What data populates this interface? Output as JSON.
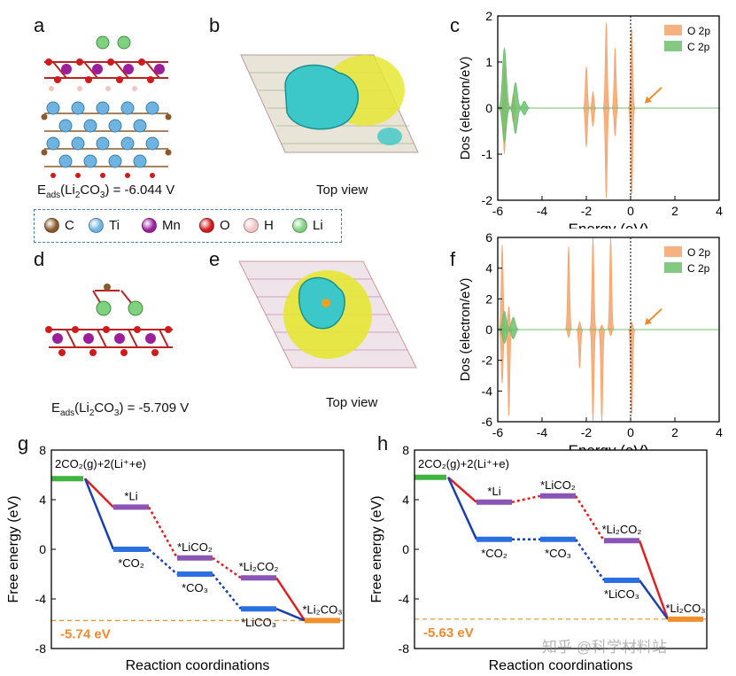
{
  "panels": {
    "a": {
      "label": "a",
      "energy_text": "E",
      "sub": "ads",
      "rest": "(Li",
      "sub2": "2",
      "mid": "CO",
      "sub3": "3",
      "tail": ") = -6.044 V"
    },
    "b": {
      "label": "b",
      "caption": "Top view"
    },
    "c": {
      "label": "c"
    },
    "d": {
      "label": "d",
      "energy_text": "E",
      "sub": "ads",
      "rest": "(Li",
      "sub2": "2",
      "mid": "CO",
      "sub3": "3",
      "tail": ") = -5.709 V"
    },
    "e": {
      "label": "e",
      "caption": "Top view"
    },
    "f": {
      "label": "f"
    },
    "g": {
      "label": "g"
    },
    "h": {
      "label": "h"
    }
  },
  "atom_legend": [
    {
      "symbol": "C",
      "color": "#8b5a2b"
    },
    {
      "symbol": "Ti",
      "color": "#6fb3e0"
    },
    {
      "symbol": "Mn",
      "color": "#9b1f9b"
    },
    {
      "symbol": "O",
      "color": "#d11a1a"
    },
    {
      "symbol": "H",
      "color": "#f2c4c4"
    },
    {
      "symbol": "Li",
      "color": "#7fd17f"
    }
  ],
  "colors": {
    "o2p": "#f5a36b",
    "c2p": "#6dbf6d",
    "arrow": "#f08a2a",
    "red_path": "#e02020",
    "blue_path": "#1a3fb0",
    "ref_line": "#f08a2a",
    "green_level": "#3fb53f",
    "purple_level": "#8a55b5",
    "blue_level": "#2a70e0",
    "orange_level": "#f0902a"
  },
  "chart_data": [
    {
      "id": "c",
      "type": "area",
      "xlabel": "Energy (eV)",
      "ylabel": "Dos (electron/eV)",
      "xlim": [
        -6,
        4
      ],
      "ylim": [
        -2,
        2
      ],
      "xticks": [
        "-6",
        "-4",
        "-2",
        "0",
        "2",
        "4"
      ],
      "yticks": [
        "-2",
        "-1",
        "0",
        "1",
        "2"
      ],
      "legend": [
        "O 2p",
        "C 2p"
      ],
      "legend_position": "top-right",
      "fermi_level": 0,
      "series": [
        {
          "name": "O 2p",
          "peaks": [
            {
              "x": -5.7,
              "up": 0.95,
              "down": -1.0
            },
            {
              "x": -5.3,
              "up": 0.3,
              "down": -0.3
            },
            {
              "x": -2.0,
              "up": 0.9,
              "down": -0.85
            },
            {
              "x": -1.7,
              "up": 0.35,
              "down": -0.4
            },
            {
              "x": -1.1,
              "up": 1.85,
              "down": -1.95
            },
            {
              "x": -0.7,
              "up": 1.3,
              "down": -0.6
            },
            {
              "x": 0.05,
              "up": 1.75,
              "down": -1.9
            }
          ]
        },
        {
          "name": "C 2p",
          "peaks": [
            {
              "x": -5.7,
              "up": 1.3,
              "down": -0.75
            },
            {
              "x": -5.2,
              "up": 0.55,
              "down": -0.55
            },
            {
              "x": -4.8,
              "up": 0.15,
              "down": -0.15
            }
          ]
        }
      ]
    },
    {
      "id": "f",
      "type": "area",
      "xlabel": "Energy (eV)",
      "ylabel": "Dos (electron/eV)",
      "xlim": [
        -6,
        4
      ],
      "ylim": [
        -6,
        6
      ],
      "xticks": [
        "-6",
        "-4",
        "-2",
        "0",
        "2",
        "4"
      ],
      "yticks": [
        "-6",
        "-4",
        "-2",
        "0",
        "2",
        "4",
        "6"
      ],
      "legend": [
        "O 2p",
        "C 2p"
      ],
      "legend_position": "top-right",
      "fermi_level": 0,
      "series": [
        {
          "name": "O 2p",
          "peaks": [
            {
              "x": -5.8,
              "up": 5.5,
              "down": -3.5
            },
            {
              "x": -5.5,
              "up": 1.5,
              "down": -5.6
            },
            {
              "x": -2.8,
              "up": 5.4,
              "down": -0.5
            },
            {
              "x": -2.3,
              "up": 0.5,
              "down": -2.5
            },
            {
              "x": -1.7,
              "up": 6.0,
              "down": -6.0
            },
            {
              "x": -1.3,
              "up": 0.3,
              "down": -6.0
            },
            {
              "x": -0.9,
              "up": 6.0,
              "down": -0.4
            },
            {
              "x": 0.05,
              "up": 0.5,
              "down": -5.6
            }
          ]
        },
        {
          "name": "C 2p",
          "peaks": [
            {
              "x": -5.7,
              "up": 1.2,
              "down": -0.9
            },
            {
              "x": -5.3,
              "up": 0.8,
              "down": -0.6
            }
          ]
        }
      ]
    },
    {
      "id": "g",
      "type": "line",
      "xlabel": "Reaction coordinations",
      "ylabel": "Free energy (eV)",
      "ylim": [
        -8,
        8
      ],
      "yticks": [
        "-8",
        "-4",
        "0",
        "4",
        "8"
      ],
      "reference_line": -5.74,
      "reference_label": "-5.74 eV",
      "start_label": "2CO₂(g)+2(Li⁺+e)",
      "levels": [
        {
          "label": "2CO2(g)+2(Li+e)",
          "x": 0,
          "y": 5.7,
          "color": "green"
        },
        {
          "label": "*Li",
          "x": 1,
          "y": 3.4,
          "color": "purple"
        },
        {
          "label": "*CO₂",
          "x": 1,
          "y": 0.0,
          "color": "blue"
        },
        {
          "label": "*LiCO₂",
          "x": 2,
          "y": -0.7,
          "color": "purple"
        },
        {
          "label": "*CO₃",
          "x": 2,
          "y": -2.0,
          "color": "blue"
        },
        {
          "label": "*Li₂CO₂",
          "x": 3,
          "y": -2.3,
          "color": "purple"
        },
        {
          "label": "*LiCO₃",
          "x": 3,
          "y": -4.8,
          "color": "blue"
        },
        {
          "label": "*Li₂CO₃",
          "x": 4,
          "y": -5.74,
          "color": "orange"
        }
      ],
      "red_path": [
        [
          0,
          5.7
        ],
        [
          1,
          3.4
        ],
        [
          2,
          -0.7
        ],
        [
          3,
          -2.3
        ],
        [
          4,
          -5.74
        ]
      ],
      "blue_path": [
        [
          0,
          5.7
        ],
        [
          1,
          0.0
        ],
        [
          2,
          -2.0
        ],
        [
          3,
          -4.8
        ],
        [
          4,
          -5.74
        ]
      ]
    },
    {
      "id": "h",
      "type": "line",
      "xlabel": "Reaction coordinations",
      "ylabel": "Free energy (eV)",
      "ylim": [
        -8,
        8
      ],
      "yticks": [
        "-8",
        "-4",
        "0",
        "4",
        "8"
      ],
      "reference_line": -5.63,
      "reference_label": "-5.63 eV",
      "start_label": "2CO₂(g)+2(Li⁺+e)",
      "levels": [
        {
          "label": "2CO2(g)+2(Li+e)",
          "x": 0,
          "y": 5.8,
          "color": "green"
        },
        {
          "label": "*Li",
          "x": 1,
          "y": 3.8,
          "color": "purple"
        },
        {
          "label": "*CO₂",
          "x": 1,
          "y": 0.8,
          "color": "blue"
        },
        {
          "label": "*LiCO₂",
          "x": 2,
          "y": 4.3,
          "color": "purple"
        },
        {
          "label": "*CO₃",
          "x": 2,
          "y": 0.8,
          "color": "blue"
        },
        {
          "label": "*Li₂CO₂",
          "x": 3,
          "y": 0.7,
          "color": "purple"
        },
        {
          "label": "*LiCO₃",
          "x": 3,
          "y": -2.5,
          "color": "blue"
        },
        {
          "label": "*Li₂CO₃",
          "x": 4,
          "y": -5.63,
          "color": "orange"
        }
      ],
      "red_path": [
        [
          0,
          5.8
        ],
        [
          1,
          3.8
        ],
        [
          2,
          4.3
        ],
        [
          3,
          0.7
        ],
        [
          4,
          -5.63
        ]
      ],
      "blue_path": [
        [
          0,
          5.8
        ],
        [
          1,
          0.8
        ],
        [
          2,
          0.8
        ],
        [
          3,
          -2.5
        ],
        [
          4,
          -5.63
        ]
      ]
    }
  ],
  "watermark": "知乎 @科学材料站"
}
